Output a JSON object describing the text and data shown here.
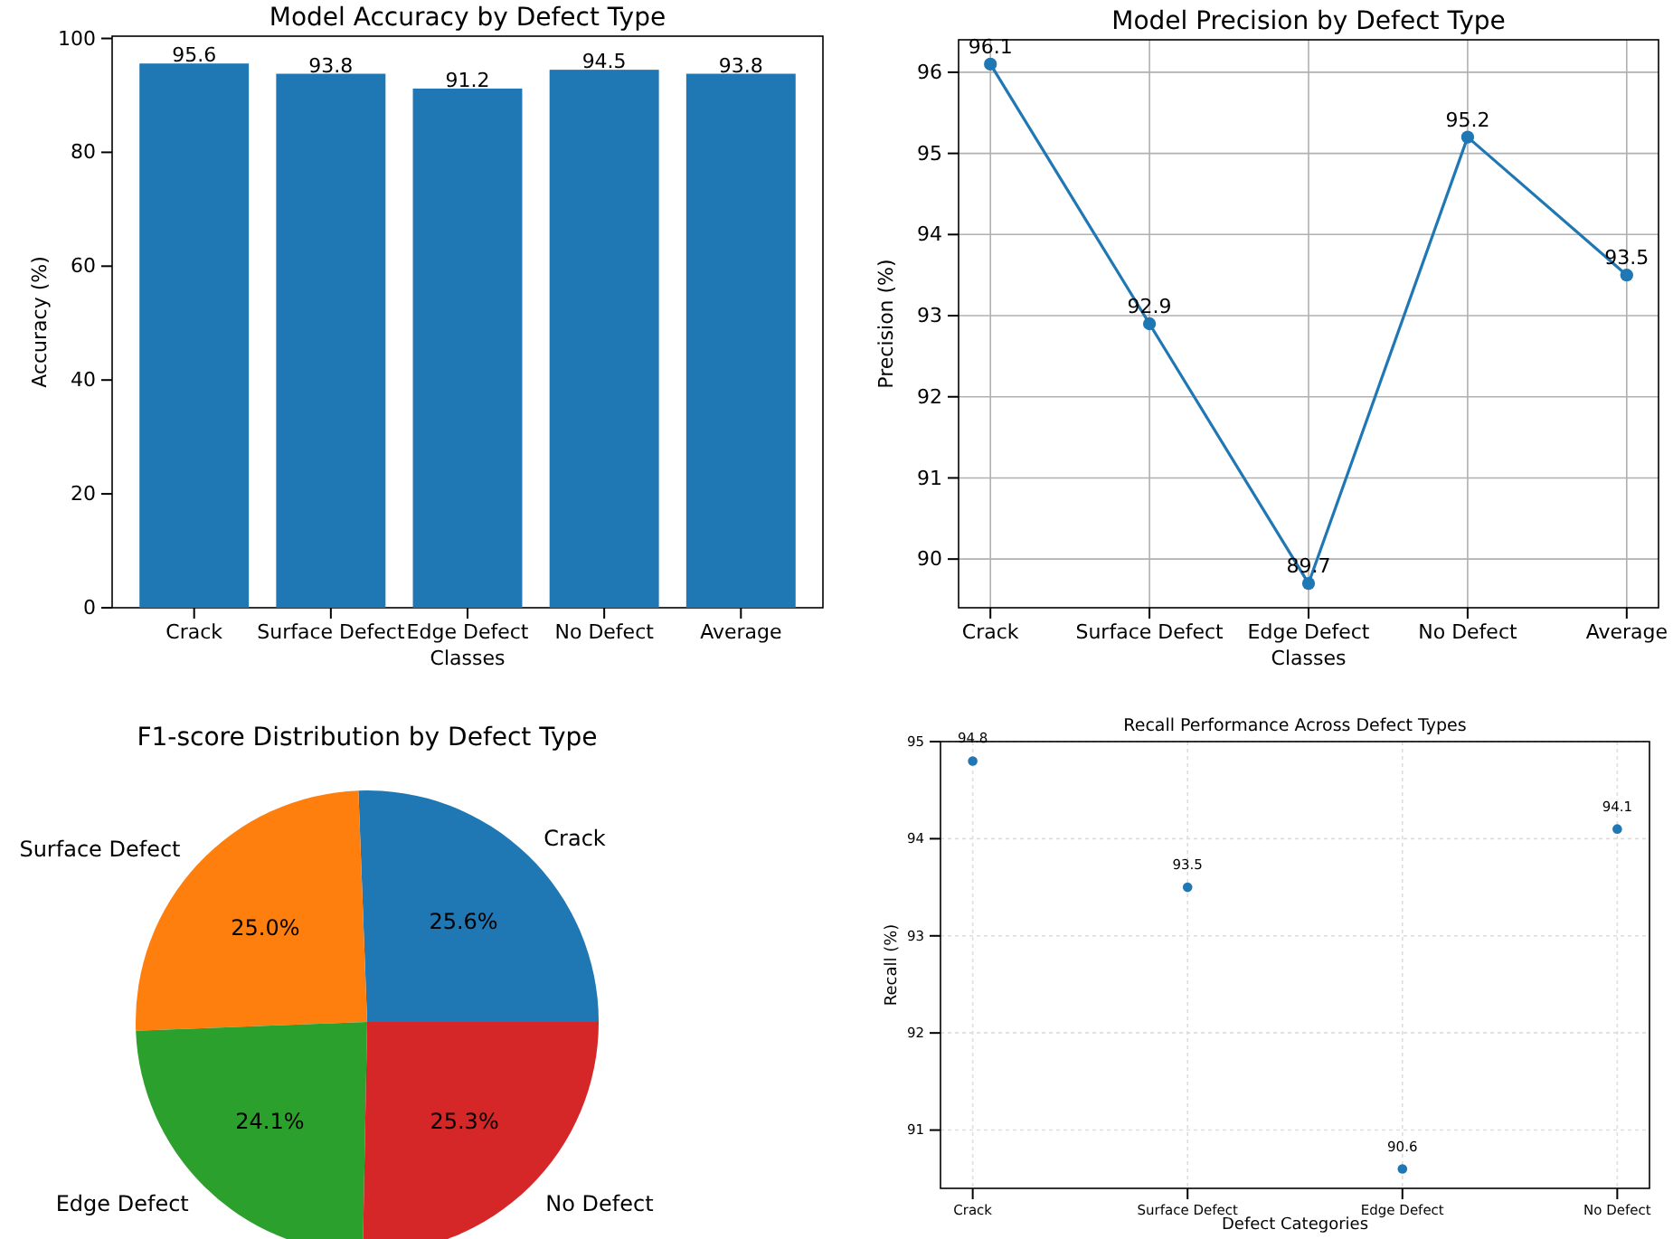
{
  "chart_data": [
    {
      "type": "bar",
      "title": "Model Accuracy by Defect Type",
      "xlabel": "Classes",
      "ylabel": "Accuracy (%)",
      "categories": [
        "Crack",
        "Surface Defect",
        "Edge Defect",
        "No Defect",
        "Average"
      ],
      "values": [
        95.6,
        93.8,
        91.2,
        94.5,
        93.8
      ],
      "color": "#1f77b4",
      "ylim": [
        0,
        100.4
      ],
      "yticks": [
        0,
        20,
        40,
        60,
        80,
        100
      ],
      "data_labels": true
    },
    {
      "type": "line",
      "title": "Model Precision by Defect Type",
      "xlabel": "Classes",
      "ylabel": "Precision (%)",
      "categories": [
        "Crack",
        "Surface Defect",
        "Edge Defect",
        "No Defect",
        "Average"
      ],
      "values": [
        96.1,
        92.9,
        89.7,
        95.2,
        93.5
      ],
      "color": "#1f77b4",
      "ylim": [
        89.4,
        96.4
      ],
      "yticks": [
        90,
        91,
        92,
        93,
        94,
        95,
        96
      ],
      "grid": true,
      "marker": "circle",
      "data_labels": true
    },
    {
      "type": "pie",
      "title": "F1-score Distribution by Defect Type",
      "categories": [
        "Crack",
        "Surface Defect",
        "Edge Defect",
        "No Defect"
      ],
      "values": [
        25.6,
        25.0,
        24.1,
        25.3
      ],
      "colors": [
        "#1f77b4",
        "#ff7f0e",
        "#2ca02c",
        "#d62728"
      ],
      "value_labels": [
        "25.6%",
        "25.0%",
        "24.1%",
        "25.3%"
      ]
    },
    {
      "type": "scatter",
      "title": "Recall Performance Across Defect Types",
      "xlabel": "Defect Categories",
      "ylabel": "Recall (%)",
      "categories": [
        "Crack",
        "Surface Defect",
        "Edge Defect",
        "No Defect"
      ],
      "values": [
        94.8,
        93.5,
        90.6,
        94.1
      ],
      "color": "#1f77b4",
      "ylim": [
        90.4,
        95.0
      ],
      "yticks": [
        91,
        92,
        93,
        94,
        95
      ],
      "grid": true,
      "data_labels": true
    }
  ]
}
